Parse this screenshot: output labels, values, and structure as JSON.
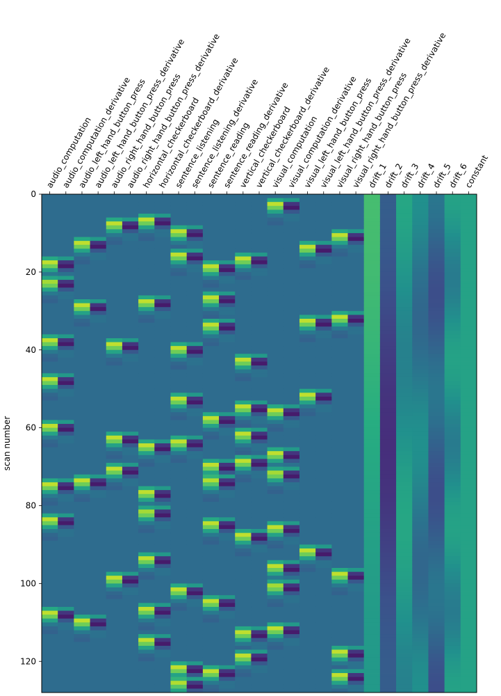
{
  "chart_data": {
    "type": "heatmap",
    "title": "",
    "ylabel": "scan number",
    "xlabel": "",
    "y_range": [
      0,
      128
    ],
    "y_ticks": [
      0,
      20,
      40,
      60,
      80,
      100,
      120
    ],
    "x_inverted": false,
    "y_inverted": true,
    "colormap": "viridis",
    "columns": [
      "audio_computation",
      "audio_computation_derivative",
      "audio_left_hand_button_press",
      "audio_left_hand_button_press_derivative",
      "audio_right_hand_button_press",
      "audio_right_hand_button_press_derivative",
      "horizontal_checkerboard",
      "horizontal_checkerboard_derivative",
      "sentence_listening",
      "sentence_listening_derivative",
      "sentence_reading",
      "sentence_reading_derivative",
      "vertical_checkerboard",
      "vertical_checkerboard_derivative",
      "visual_computation",
      "visual_computation_derivative",
      "visual_left_hand_button_press",
      "visual_left_hand_button_press_derivative",
      "visual_right_hand_button_press",
      "visual_right_hand_button_press_derivative",
      "drift_1",
      "drift_2",
      "drift_3",
      "drift_4",
      "drift_5",
      "drift_6",
      "constant"
    ],
    "events": {
      "audio_computation": [
        16,
        21,
        36,
        46,
        58,
        73,
        82,
        106
      ],
      "audio_left_hand_button_press": [
        11,
        27,
        72,
        108
      ],
      "audio_right_hand_button_press": [
        6,
        37,
        61,
        69,
        97
      ],
      "horizontal_checkerboard": [
        5,
        26,
        63,
        75,
        80,
        92,
        105,
        113
      ],
      "sentence_listening": [
        8,
        14,
        38,
        51,
        62,
        100,
        120,
        124
      ],
      "sentence_reading": [
        17,
        25,
        32,
        56,
        68,
        72,
        83,
        103,
        121
      ],
      "vertical_checkerboard": [
        15,
        41,
        53,
        60,
        67,
        86,
        111,
        117
      ],
      "visual_computation": [
        1,
        54,
        65,
        70,
        84,
        94,
        99,
        110
      ],
      "visual_left_hand_button_press": [
        12,
        31,
        50,
        90
      ],
      "visual_right_hand_button_press": [
        9,
        30,
        96,
        116,
        122
      ]
    },
    "drift_profiles": [
      {
        "name": "drift_1",
        "value": 0.62
      },
      {
        "name": "drift_2",
        "value": 0.22
      },
      {
        "name": "drift_3",
        "value": 0.52
      },
      {
        "name": "drift_4",
        "value": 0.42
      },
      {
        "name": "drift_5",
        "value": 0.32
      },
      {
        "name": "drift_6",
        "value": 0.5
      }
    ],
    "constant_value": 0.58
  }
}
